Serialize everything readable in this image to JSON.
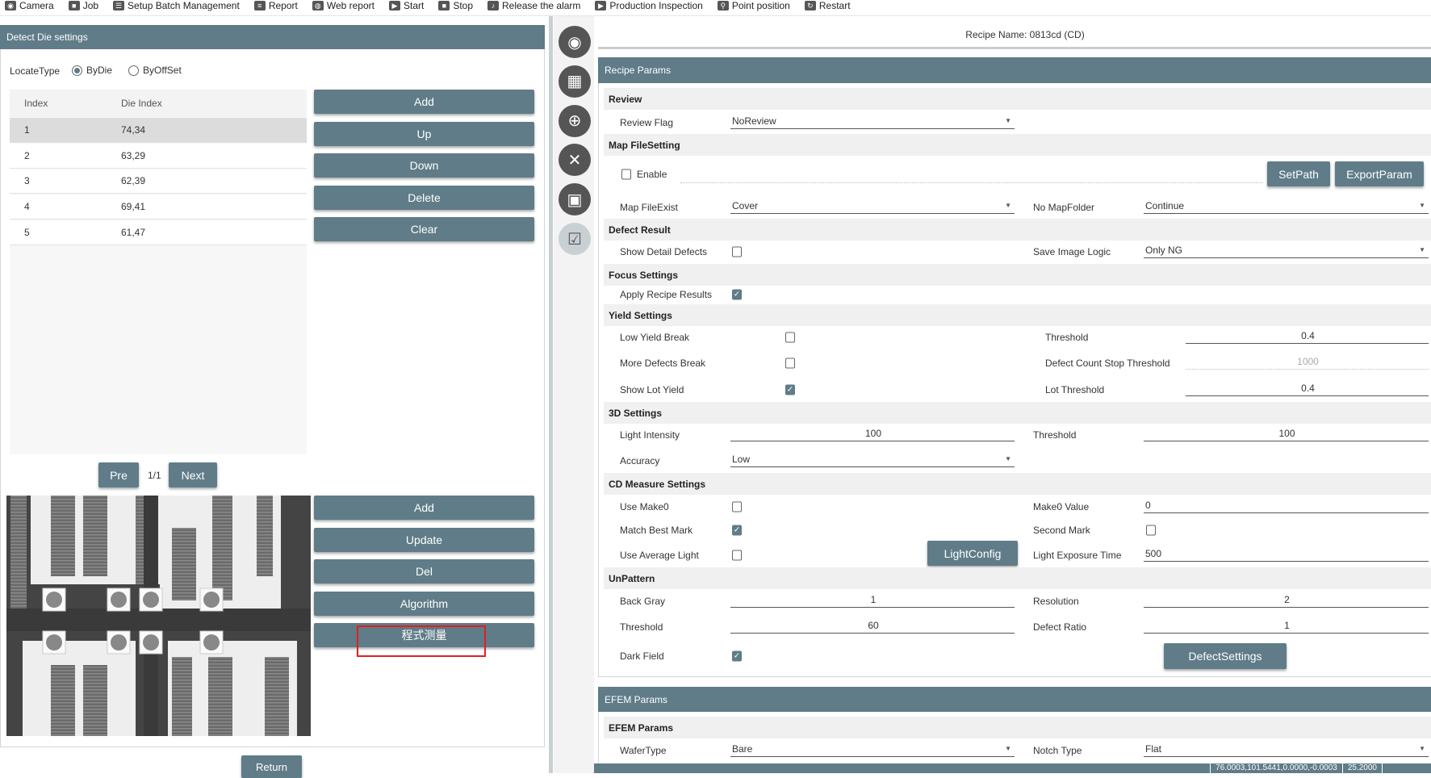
{
  "toolbar": {
    "items": [
      {
        "label": "Camera",
        "icon": "camera-icon"
      },
      {
        "label": "Job",
        "icon": "job-icon"
      },
      {
        "label": "Setup Batch Management",
        "icon": "checklist-icon"
      },
      {
        "label": "Report",
        "icon": "report-icon"
      },
      {
        "label": "Web report",
        "icon": "web-report-icon"
      },
      {
        "label": "Start",
        "icon": "play-icon"
      },
      {
        "label": "Stop",
        "icon": "stop-icon"
      },
      {
        "label": "Release the alarm",
        "icon": "bell-off-icon"
      },
      {
        "label": "Production Inspection",
        "icon": "play-icon"
      },
      {
        "label": "Point position",
        "icon": "map-pin-icon"
      },
      {
        "label": "Restart",
        "icon": "restart-icon"
      }
    ]
  },
  "left": {
    "title": "Detect Die settings",
    "locate_type_label": "LocateType",
    "locate_options": [
      {
        "label": "ByDie",
        "checked": true
      },
      {
        "label": "ByOffSet",
        "checked": false
      }
    ],
    "table": {
      "headers": [
        "Index",
        "Die Index"
      ],
      "rows": [
        [
          "1",
          "74,34"
        ],
        [
          "2",
          "63,29"
        ],
        [
          "3",
          "62,39"
        ],
        [
          "4",
          "69,41"
        ],
        [
          "5",
          "61,47"
        ]
      ],
      "selected_row": 1
    },
    "top_buttons": [
      "Add",
      "Up",
      "Down",
      "Delete",
      "Clear"
    ],
    "pager": {
      "pre": "Pre",
      "page": "1/1",
      "next": "Next"
    },
    "bottom_buttons": [
      "Add",
      "Update",
      "Del",
      "Algorithm",
      "程式测量"
    ],
    "return_label": "Return"
  },
  "side_icons": [
    "camera-icon",
    "wafer-grid-icon",
    "wafer-list-icon",
    "tools-icon",
    "image-icon",
    "checklist-icon"
  ],
  "recipe": {
    "recipe_name": "Recipe Name: 0813cd (CD)",
    "title": "Recipe Params",
    "sections": [
      {
        "title": "Review",
        "fields": [
          {
            "label": "Review Flag",
            "value": "NoReview"
          }
        ]
      },
      {
        "title": "Map FileSetting",
        "fields": [
          {
            "label": "Enable",
            "checked": false
          },
          {
            "label": "Map FileExist",
            "value": "Cover"
          },
          {
            "label": "No MapFolder",
            "value": "Continue"
          }
        ],
        "buttons": [
          "SetPath",
          "ExportParam"
        ]
      },
      {
        "title": "Defect Result",
        "fields": [
          {
            "label": "Show Detail Defects",
            "checked": false
          },
          {
            "label": "Save Image Logic",
            "value": "Only NG"
          }
        ]
      },
      {
        "title": "Focus Settings",
        "fields": [
          {
            "label": "Apply Recipe Results",
            "checked": true
          }
        ]
      },
      {
        "title": "Yield Settings",
        "fields": [
          {
            "label": "Low Yield Break",
            "checked": false
          },
          {
            "label": "Threshold",
            "value": "0.4"
          },
          {
            "label": "More Defects Break",
            "checked": false
          },
          {
            "label": "Defect Count Stop Threshold",
            "value": "1000"
          },
          {
            "label": "Show Lot Yield",
            "checked": true
          },
          {
            "label": "Lot Threshold",
            "value": "0.4"
          }
        ]
      },
      {
        "title": "3D Settings",
        "fields": [
          {
            "label": "Light Intensity",
            "value": "100"
          },
          {
            "label": "Threshold",
            "value": "100"
          },
          {
            "label": "Accuracy",
            "value": "Low"
          }
        ]
      },
      {
        "title": "CD Measure Settings",
        "fields": [
          {
            "label": "Use Make0",
            "checked": false
          },
          {
            "label": "Make0 Value",
            "value": "0"
          },
          {
            "label": "Match Best Mark",
            "checked": true
          },
          {
            "label": "Second Mark",
            "checked": false
          },
          {
            "label": "Use Average Light",
            "checked": false
          },
          {
            "label": "Light Exposure Time",
            "value": "500"
          }
        ],
        "buttons": [
          "LightConfig"
        ]
      },
      {
        "title": "UnPattern",
        "fields": [
          {
            "label": "Back Gray",
            "value": "1"
          },
          {
            "label": "Resolution",
            "value": "2"
          },
          {
            "label": "Threshold",
            "value": "60"
          },
          {
            "label": "Defect Ratio",
            "value": "1"
          },
          {
            "label": "Dark Field",
            "checked": true
          }
        ],
        "buttons": [
          "DefectSettings"
        ]
      }
    ]
  },
  "efem": {
    "title": "EFEM Params",
    "sections": [
      {
        "title": "EFEM Params",
        "fields": [
          {
            "label": "WaferType",
            "value": "Bare"
          },
          {
            "label": "Notch Type",
            "value": "Flat"
          }
        ]
      }
    ]
  },
  "status_bar": {
    "segments": [
      "76.0003,101.5441,0.0000,-0.0003",
      "25.2000"
    ]
  },
  "colors": {
    "header": "#5f7c88",
    "button": "#5f7c88",
    "highlight_box": "#e02020"
  }
}
